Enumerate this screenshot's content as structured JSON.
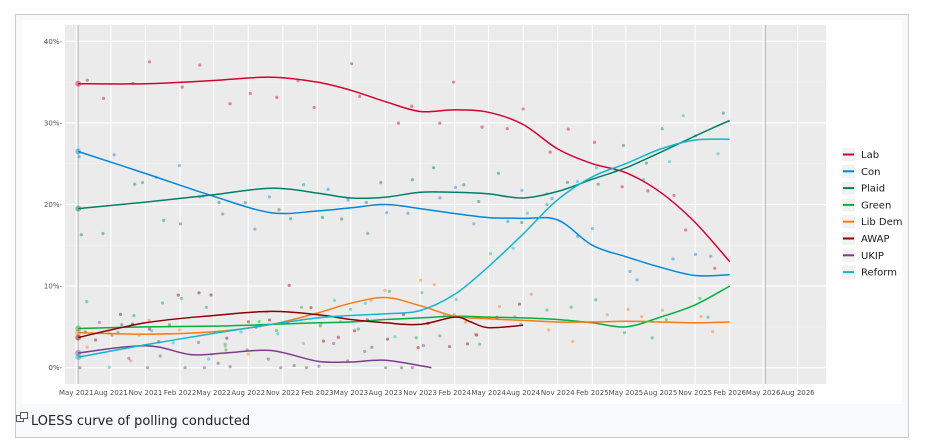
{
  "caption": "LOESS curve of polling conducted",
  "chart_data": {
    "type": "line",
    "title": "",
    "xlabel": "",
    "ylabel": "",
    "x_ticks": [
      "May 2021",
      "Aug 2021",
      "Nov 2021",
      "Feb 2022",
      "May 2022",
      "Aug 2022",
      "Nov 2022",
      "Feb 2023",
      "May 2023",
      "Aug 2023",
      "Nov 2023",
      "Feb 2024",
      "May 2024",
      "Aug 2024",
      "Nov 2024",
      "Feb 2025",
      "May 2025",
      "Aug 2025",
      "Nov 2025",
      "Feb 2026",
      "May 2026",
      "Aug 2026"
    ],
    "xlim": [
      "2021-04-01",
      "2026-10-15"
    ],
    "y_ticks": [
      "0%-",
      "10%-",
      "20%-",
      "30%-",
      "40%-"
    ],
    "ylim": [
      -2,
      42
    ],
    "grid": true,
    "legend_position": "right",
    "vlines": [
      "2021-05-06",
      "2026-05-07"
    ],
    "series": [
      {
        "name": "Lab",
        "color": "#d50032",
        "points": [
          [
            "2021-05-06",
            34.8
          ],
          [
            "2021-11-01",
            34.8
          ],
          [
            "2022-05-01",
            35.2
          ],
          [
            "2022-10-01",
            35.6
          ],
          [
            "2023-02-01",
            35.0
          ],
          [
            "2023-05-01",
            34.0
          ],
          [
            "2023-08-01",
            32.6
          ],
          [
            "2023-11-01",
            31.4
          ],
          [
            "2024-02-01",
            31.6
          ],
          [
            "2024-05-01",
            31.3
          ],
          [
            "2024-08-01",
            29.8
          ],
          [
            "2024-11-01",
            26.8
          ],
          [
            "2025-02-01",
            25.0
          ],
          [
            "2025-05-01",
            23.9
          ],
          [
            "2025-08-01",
            21.5
          ],
          [
            "2025-11-01",
            17.8
          ],
          [
            "2026-02-01",
            13.0
          ]
        ]
      },
      {
        "name": "Con",
        "color": "#0087dc",
        "points": [
          [
            "2021-05-06",
            26.5
          ],
          [
            "2021-11-01",
            23.8
          ],
          [
            "2022-05-01",
            21.0
          ],
          [
            "2022-10-01",
            19.0
          ],
          [
            "2023-02-01",
            19.2
          ],
          [
            "2023-05-01",
            19.6
          ],
          [
            "2023-08-01",
            20.0
          ],
          [
            "2023-11-01",
            19.5
          ],
          [
            "2024-02-01",
            18.9
          ],
          [
            "2024-05-01",
            18.4
          ],
          [
            "2024-08-01",
            18.3
          ],
          [
            "2024-11-01",
            18.1
          ],
          [
            "2025-02-01",
            15.0
          ],
          [
            "2025-05-01",
            13.6
          ],
          [
            "2025-08-01",
            12.3
          ],
          [
            "2025-11-01",
            11.3
          ],
          [
            "2026-02-01",
            11.4
          ]
        ]
      },
      {
        "name": "Plaid",
        "color": "#008066",
        "points": [
          [
            "2021-05-06",
            19.5
          ],
          [
            "2021-11-01",
            20.3
          ],
          [
            "2022-05-01",
            21.2
          ],
          [
            "2022-10-01",
            22.0
          ],
          [
            "2023-02-01",
            21.4
          ],
          [
            "2023-05-01",
            20.8
          ],
          [
            "2023-08-01",
            20.9
          ],
          [
            "2023-11-01",
            21.5
          ],
          [
            "2024-02-01",
            21.5
          ],
          [
            "2024-05-01",
            21.3
          ],
          [
            "2024-08-01",
            20.8
          ],
          [
            "2024-11-01",
            21.6
          ],
          [
            "2025-02-01",
            23.1
          ],
          [
            "2025-05-01",
            24.5
          ],
          [
            "2025-08-01",
            26.4
          ],
          [
            "2025-11-01",
            28.4
          ],
          [
            "2026-02-01",
            30.3
          ]
        ]
      },
      {
        "name": "Green",
        "color": "#00b140",
        "points": [
          [
            "2021-05-06",
            4.8
          ],
          [
            "2021-11-01",
            5.0
          ],
          [
            "2022-05-01",
            5.1
          ],
          [
            "2022-10-01",
            5.3
          ],
          [
            "2023-02-01",
            5.5
          ],
          [
            "2023-05-01",
            5.6
          ],
          [
            "2023-08-01",
            5.9
          ],
          [
            "2023-11-01",
            6.1
          ],
          [
            "2024-02-01",
            6.3
          ],
          [
            "2024-05-01",
            6.2
          ],
          [
            "2024-08-01",
            6.1
          ],
          [
            "2024-11-01",
            5.9
          ],
          [
            "2025-02-01",
            5.5
          ],
          [
            "2025-05-01",
            5.0
          ],
          [
            "2025-08-01",
            6.2
          ],
          [
            "2025-11-01",
            7.7
          ],
          [
            "2026-02-01",
            10.0
          ]
        ]
      },
      {
        "name": "Lib Dem",
        "color": "#fa7a14",
        "points": [
          [
            "2021-05-06",
            4.3
          ],
          [
            "2021-11-01",
            4.1
          ],
          [
            "2022-05-01",
            4.4
          ],
          [
            "2022-10-01",
            5.3
          ],
          [
            "2023-02-01",
            6.7
          ],
          [
            "2023-05-01",
            7.9
          ],
          [
            "2023-08-01",
            8.6
          ],
          [
            "2023-11-01",
            7.6
          ],
          [
            "2024-02-01",
            6.3
          ],
          [
            "2024-05-01",
            6.0
          ],
          [
            "2024-08-01",
            5.8
          ],
          [
            "2024-11-01",
            5.6
          ],
          [
            "2025-02-01",
            5.6
          ],
          [
            "2025-05-01",
            5.7
          ],
          [
            "2025-08-01",
            5.6
          ],
          [
            "2025-11-01",
            5.5
          ],
          [
            "2026-02-01",
            5.6
          ]
        ]
      },
      {
        "name": "AWAP",
        "color": "#8b0000",
        "points": [
          [
            "2021-05-06",
            3.7
          ],
          [
            "2021-11-01",
            5.5
          ],
          [
            "2022-05-01",
            6.4
          ],
          [
            "2022-10-01",
            6.9
          ],
          [
            "2023-02-01",
            6.5
          ],
          [
            "2023-05-01",
            5.9
          ],
          [
            "2023-08-01",
            5.5
          ],
          [
            "2023-11-01",
            5.3
          ],
          [
            "2024-02-01",
            6.2
          ],
          [
            "2024-03-15",
            5.6
          ],
          [
            "2024-05-01",
            4.9
          ],
          [
            "2024-08-01",
            5.2
          ]
        ]
      },
      {
        "name": "UKIP",
        "color": "#7d3c8e",
        "points": [
          [
            "2021-05-06",
            1.8
          ],
          [
            "2021-11-01",
            2.7
          ],
          [
            "2022-03-01",
            1.6
          ],
          [
            "2022-06-01",
            1.8
          ],
          [
            "2022-10-01",
            2.1
          ],
          [
            "2023-02-01",
            0.8
          ],
          [
            "2023-05-01",
            0.7
          ],
          [
            "2023-08-01",
            0.9
          ],
          [
            "2023-12-01",
            0.0
          ]
        ]
      },
      {
        "name": "Reform",
        "color": "#12b6cf",
        "points": [
          [
            "2021-05-06",
            1.3
          ],
          [
            "2021-11-01",
            2.8
          ],
          [
            "2022-05-01",
            4.2
          ],
          [
            "2022-10-01",
            5.3
          ],
          [
            "2023-02-01",
            6.1
          ],
          [
            "2023-05-01",
            6.4
          ],
          [
            "2023-08-01",
            6.6
          ],
          [
            "2023-11-01",
            7.0
          ],
          [
            "2024-02-01",
            9.0
          ],
          [
            "2024-05-01",
            12.4
          ],
          [
            "2024-08-01",
            16.4
          ],
          [
            "2024-11-01",
            20.6
          ],
          [
            "2025-02-01",
            23.4
          ],
          [
            "2025-05-01",
            25.0
          ],
          [
            "2025-08-01",
            26.8
          ],
          [
            "2025-11-01",
            27.9
          ],
          [
            "2026-02-01",
            28.0
          ]
        ]
      }
    ]
  }
}
